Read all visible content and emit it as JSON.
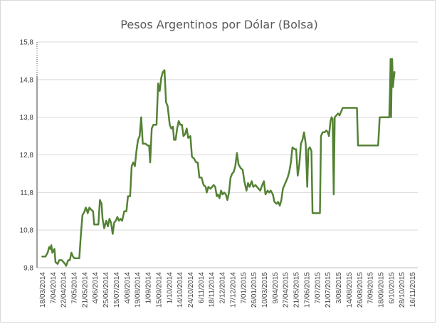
{
  "chart_data": {
    "type": "line",
    "title": "Pesos Argentinos por Dólar (Bolsa)",
    "xlabel": "",
    "ylabel": "",
    "ylim": [
      9.8,
      15.8
    ],
    "yticks": [
      "9,8",
      "10,8",
      "11,8",
      "12,8",
      "13,8",
      "14,8",
      "15,8"
    ],
    "ytick_values": [
      9.8,
      10.8,
      11.8,
      12.8,
      13.8,
      14.8,
      15.8
    ],
    "grid": true,
    "legend": "none",
    "color": "#548235",
    "xticks": [
      "18/03/2014",
      "7/04/2014",
      "22/04/2014",
      "7/05/2014",
      "21/05/2014",
      "4/06/2014",
      "25/06/2014",
      "15/07/2014",
      "4/08/2014",
      "19/08/2014",
      "1/09/2014",
      "15/09/2014",
      "1/10/2014",
      "14/10/2014",
      "24/10/2014",
      "6/11/2014",
      "18/11/2014",
      "2/12/2014",
      "17/12/2014",
      "7/01/2015",
      "26/01/2015",
      "10/03/2015",
      "9/04/2015",
      "27/04/2015",
      "21/05/2015",
      "17/06/2015",
      "7/07/2015",
      "21/07/2015",
      "3/08/2015",
      "14/08/2015",
      "26/08/2015",
      "7/09/2015",
      "18/09/2015",
      "6/10/2015",
      "28/10/2015",
      "16/11/2015"
    ],
    "series": [
      {
        "values": [
          [
            0,
            10.1
          ],
          [
            0.3,
            10.1
          ],
          [
            0.5,
            10.2
          ],
          [
            0.65,
            10.35
          ],
          [
            0.75,
            10.3
          ],
          [
            0.85,
            10.4
          ],
          [
            0.95,
            10.2
          ],
          [
            1.05,
            10.25
          ],
          [
            1.15,
            10.3
          ],
          [
            1.25,
            9.95
          ],
          [
            1.45,
            9.9
          ],
          [
            1.6,
            10.0
          ],
          [
            1.85,
            10.0
          ],
          [
            2.0,
            9.95
          ],
          [
            2.15,
            9.9
          ],
          [
            2.25,
            9.85
          ],
          [
            2.45,
            10.0
          ],
          [
            2.6,
            10.0
          ],
          [
            2.75,
            10.2
          ],
          [
            2.9,
            10.1
          ],
          [
            3.05,
            10.05
          ],
          [
            3.5,
            10.05
          ],
          [
            3.65,
            10.7
          ],
          [
            3.8,
            11.2
          ],
          [
            4.0,
            11.3
          ],
          [
            4.1,
            11.4
          ],
          [
            4.2,
            11.35
          ],
          [
            4.3,
            11.25
          ],
          [
            4.45,
            11.4
          ],
          [
            4.6,
            11.35
          ],
          [
            4.8,
            11.3
          ],
          [
            4.9,
            10.95
          ],
          [
            5.3,
            10.95
          ],
          [
            5.45,
            11.6
          ],
          [
            5.6,
            11.5
          ],
          [
            5.7,
            11.1
          ],
          [
            5.85,
            10.85
          ],
          [
            6.05,
            11.05
          ],
          [
            6.2,
            10.9
          ],
          [
            6.35,
            11.1
          ],
          [
            6.5,
            11.0
          ],
          [
            6.65,
            10.7
          ],
          [
            6.8,
            11.0
          ],
          [
            6.95,
            11.05
          ],
          [
            7.1,
            11.15
          ],
          [
            7.25,
            11.05
          ],
          [
            7.4,
            11.1
          ],
          [
            7.55,
            11.05
          ],
          [
            7.75,
            11.3
          ],
          [
            7.95,
            11.3
          ],
          [
            8.1,
            11.7
          ],
          [
            8.3,
            11.7
          ],
          [
            8.45,
            12.5
          ],
          [
            8.6,
            12.6
          ],
          [
            8.75,
            12.5
          ],
          [
            8.9,
            12.9
          ],
          [
            9.05,
            13.2
          ],
          [
            9.2,
            13.3
          ],
          [
            9.35,
            13.8
          ],
          [
            9.5,
            13.1
          ],
          [
            9.75,
            13.1
          ],
          [
            9.95,
            13.05
          ],
          [
            10.1,
            13.05
          ],
          [
            10.2,
            12.6
          ],
          [
            10.35,
            13.5
          ],
          [
            10.5,
            13.6
          ],
          [
            10.8,
            13.6
          ],
          [
            10.95,
            14.7
          ],
          [
            11.1,
            14.5
          ],
          [
            11.25,
            14.85
          ],
          [
            11.4,
            15.0
          ],
          [
            11.55,
            15.05
          ],
          [
            11.7,
            14.2
          ],
          [
            11.85,
            14.1
          ],
          [
            12.05,
            13.6
          ],
          [
            12.2,
            13.5
          ],
          [
            12.35,
            13.55
          ],
          [
            12.45,
            13.2
          ],
          [
            12.6,
            13.2
          ],
          [
            12.75,
            13.5
          ],
          [
            12.9,
            13.7
          ],
          [
            13.05,
            13.6
          ],
          [
            13.2,
            13.6
          ],
          [
            13.35,
            13.3
          ],
          [
            13.5,
            13.35
          ],
          [
            13.65,
            13.5
          ],
          [
            13.8,
            13.25
          ],
          [
            14.0,
            13.3
          ],
          [
            14.15,
            12.75
          ],
          [
            14.35,
            12.7
          ],
          [
            14.55,
            12.6
          ],
          [
            14.7,
            12.6
          ],
          [
            14.85,
            12.2
          ],
          [
            15.05,
            12.2
          ],
          [
            15.25,
            12.0
          ],
          [
            15.45,
            11.95
          ],
          [
            15.55,
            11.8
          ],
          [
            15.7,
            11.95
          ],
          [
            15.9,
            11.9
          ],
          [
            16.05,
            11.95
          ],
          [
            16.2,
            12.0
          ],
          [
            16.35,
            11.95
          ],
          [
            16.5,
            11.7
          ],
          [
            16.6,
            11.75
          ],
          [
            16.75,
            11.65
          ],
          [
            16.9,
            11.85
          ],
          [
            17.05,
            11.75
          ],
          [
            17.2,
            11.8
          ],
          [
            17.35,
            11.75
          ],
          [
            17.5,
            11.6
          ],
          [
            17.65,
            11.8
          ],
          [
            17.8,
            12.2
          ],
          [
            17.95,
            12.3
          ],
          [
            18.1,
            12.35
          ],
          [
            18.25,
            12.5
          ],
          [
            18.4,
            12.85
          ],
          [
            18.55,
            12.55
          ],
          [
            18.75,
            12.45
          ],
          [
            18.95,
            12.4
          ],
          [
            19.1,
            12.1
          ],
          [
            19.3,
            11.85
          ],
          [
            19.45,
            12.05
          ],
          [
            19.6,
            11.95
          ],
          [
            19.8,
            12.1
          ],
          [
            19.95,
            11.95
          ],
          [
            20.15,
            12.0
          ],
          [
            20.3,
            11.95
          ],
          [
            20.45,
            11.9
          ],
          [
            20.6,
            11.85
          ],
          [
            20.8,
            12.0
          ],
          [
            20.95,
            12.1
          ],
          [
            21.1,
            11.75
          ],
          [
            21.3,
            11.85
          ],
          [
            21.45,
            11.8
          ],
          [
            21.6,
            11.85
          ],
          [
            21.8,
            11.75
          ],
          [
            21.95,
            11.55
          ],
          [
            22.15,
            11.5
          ],
          [
            22.3,
            11.55
          ],
          [
            22.45,
            11.45
          ],
          [
            22.6,
            11.6
          ],
          [
            22.75,
            11.9
          ],
          [
            22.9,
            12.0
          ],
          [
            23.05,
            12.1
          ],
          [
            23.2,
            12.2
          ],
          [
            23.35,
            12.35
          ],
          [
            23.5,
            12.6
          ],
          [
            23.65,
            13.0
          ],
          [
            23.85,
            12.95
          ],
          [
            24.0,
            12.95
          ],
          [
            24.15,
            12.25
          ],
          [
            24.3,
            12.55
          ],
          [
            24.45,
            13.1
          ],
          [
            24.6,
            13.2
          ],
          [
            24.75,
            13.4
          ],
          [
            24.9,
            13.1
          ],
          [
            25.05,
            11.95
          ],
          [
            25.15,
            12.95
          ],
          [
            25.3,
            13.0
          ],
          [
            25.45,
            12.9
          ],
          [
            25.55,
            11.25
          ],
          [
            25.7,
            11.25
          ],
          [
            26.25,
            11.25
          ],
          [
            26.35,
            13.3
          ],
          [
            26.5,
            13.4
          ],
          [
            26.7,
            13.4
          ],
          [
            26.85,
            13.45
          ],
          [
            27.0,
            13.4
          ],
          [
            27.1,
            13.3
          ],
          [
            27.25,
            13.7
          ],
          [
            27.35,
            13.8
          ],
          [
            27.45,
            13.75
          ],
          [
            27.55,
            11.75
          ],
          [
            27.65,
            13.8
          ],
          [
            27.8,
            13.85
          ],
          [
            27.95,
            13.9
          ],
          [
            28.1,
            13.85
          ],
          [
            28.25,
            13.95
          ],
          [
            28.4,
            14.05
          ],
          [
            28.7,
            14.05
          ],
          [
            28.9,
            14.05
          ],
          [
            29.2,
            14.05
          ],
          [
            29.5,
            14.05
          ],
          [
            29.75,
            14.05
          ],
          [
            29.85,
            13.05
          ],
          [
            30.3,
            13.05
          ],
          [
            30.8,
            13.05
          ],
          [
            31.3,
            13.05
          ],
          [
            31.75,
            13.05
          ],
          [
            31.9,
            13.8
          ],
          [
            32.3,
            13.8
          ],
          [
            32.6,
            13.8
          ],
          [
            32.8,
            13.8
          ],
          [
            32.88,
            14.6
          ],
          [
            32.93,
            15.35
          ],
          [
            32.98,
            13.8
          ],
          [
            33.03,
            14.9
          ],
          [
            33.08,
            15.35
          ],
          [
            33.15,
            14.6
          ],
          [
            33.22,
            14.8
          ],
          [
            33.3,
            15.0
          ]
        ]
      }
    ]
  }
}
